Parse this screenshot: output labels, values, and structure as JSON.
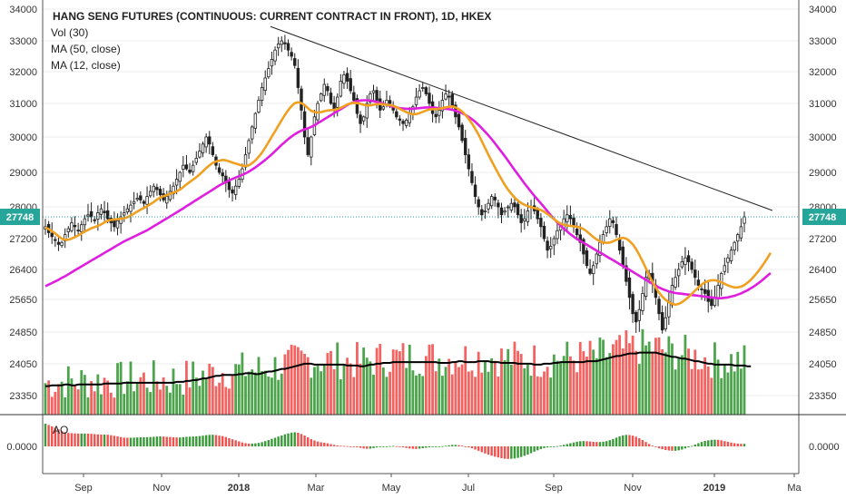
{
  "header": {
    "title": "HANG SENG FUTURES (CONTINUOUS: CURRENT CONTRACT IN FRONT), 1D, HKEX",
    "indicators": [
      "Vol (30)",
      "MA (50, close)",
      "MA (12, close)"
    ]
  },
  "colors": {
    "bull": "#3a9a3a",
    "bear": "#ef5350",
    "ma50": "#e01ee0",
    "ma12": "#f0a020",
    "vol_ma": "#000000",
    "trendline": "#222222",
    "last_price": "#26a69a",
    "grid": "#ececec",
    "axis": "#555555"
  },
  "chart_data": [
    {
      "type": "candlestick",
      "title": "HANG SENG FUTURES (CONTINUOUS: CURRENT CONTRACT IN FRONT), 1D, HKEX",
      "x_labels": [
        "Sep",
        "Nov",
        "2018",
        "Mar",
        "May",
        "Jul",
        "Sep",
        "Nov",
        "2019",
        "Ma"
      ],
      "y_ticks": [
        23350,
        24050,
        24850,
        25650,
        26400,
        27200,
        28000,
        29000,
        30000,
        31000,
        32000,
        33000,
        34000
      ],
      "y_range": [
        23200,
        34000
      ],
      "last_price": 27748,
      "last_price_label": "27748",
      "series": [
        {
          "name": "Close",
          "values": [
            27500,
            27350,
            27250,
            27150,
            27050,
            27100,
            27300,
            27450,
            27600,
            27500,
            27400,
            27550,
            27700,
            27800,
            27750,
            27650,
            27850,
            27950,
            27850,
            27700,
            27600,
            27500,
            27650,
            27750,
            27850,
            27950,
            28050,
            28150,
            28250,
            28200,
            28100,
            28300,
            28450,
            28600,
            28500,
            28350,
            28200,
            28300,
            28450,
            28600,
            28800,
            29000,
            29200,
            29100,
            29000,
            29200,
            29400,
            29600,
            29800,
            30000,
            29800,
            29500,
            29200,
            29000,
            28900,
            28700,
            28500,
            28400,
            28600,
            28800,
            29100,
            29500,
            29900,
            30300,
            30700,
            31100,
            31500,
            31800,
            32100,
            32400,
            32700,
            32900,
            33000,
            32900,
            32700,
            32500,
            32200,
            31500,
            30800,
            30000,
            29500,
            30000,
            30600,
            31000,
            31300,
            31600,
            31400,
            31000,
            30800,
            31200,
            31700,
            31900,
            31700,
            31400,
            31100,
            30700,
            30400,
            30600,
            31000,
            31300,
            31400,
            31100,
            30800,
            30900,
            31100,
            31000,
            30800,
            30600,
            30500,
            30400,
            30500,
            30700,
            30900,
            31200,
            31400,
            31500,
            31300,
            31000,
            30700,
            30600,
            30800,
            31100,
            31300,
            31200,
            30900,
            30600,
            30300,
            29900,
            29500,
            29100,
            28700,
            28300,
            28000,
            27800,
            27900,
            28100,
            28300,
            28200,
            28000,
            27800,
            27900,
            28000,
            28100,
            28000,
            27800,
            27600,
            27700,
            27900,
            28000,
            27900,
            27700,
            27500,
            27200,
            26900,
            27000,
            27200,
            27400,
            27500,
            27700,
            27800,
            27700,
            27500,
            27300,
            27100,
            26800,
            26500,
            26300,
            26500,
            26800,
            27100,
            27300,
            27500,
            27700,
            27600,
            27300,
            26900,
            26500,
            26100,
            25700,
            25300,
            25100,
            25400,
            25800,
            26200,
            26300,
            26100,
            25700,
            25300,
            24900,
            25200,
            25600,
            26000,
            26200,
            26400,
            26600,
            26700,
            26600,
            26400,
            26200,
            26000,
            25900,
            25800,
            25600,
            25500,
            25700,
            26000,
            26300,
            26500,
            26700,
            26900,
            27100,
            27300,
            27500,
            27748
          ]
        },
        {
          "name": "MA (12, close)",
          "values": [
            27480,
            27440,
            27390,
            27330,
            27260,
            27200,
            27170,
            27170,
            27200,
            27240,
            27280,
            27330,
            27380,
            27420,
            27460,
            27490,
            27520,
            27560,
            27610,
            27650,
            27670,
            27680,
            27690,
            27700,
            27710,
            27740,
            27780,
            27830,
            27880,
            27930,
            27970,
            28020,
            28080,
            28140,
            28210,
            28270,
            28310,
            28340,
            28380,
            28410,
            28450,
            28500,
            28570,
            28650,
            28720,
            28790,
            28860,
            28940,
            29030,
            29120,
            29200,
            29270,
            29310,
            29330,
            29350,
            29340,
            29310,
            29280,
            29250,
            29220,
            29190,
            29180,
            29200,
            29260,
            29340,
            29440,
            29560,
            29700,
            29850,
            30010,
            30170,
            30340,
            30500,
            30660,
            30800,
            30920,
            31010,
            31040,
            31010,
            30950,
            30860,
            30780,
            30740,
            30730,
            30740,
            30770,
            30790,
            30800,
            30810,
            30830,
            30870,
            30920,
            30970,
            31000,
            31020,
            31010,
            30990,
            30960,
            30940,
            30940,
            30960,
            30980,
            30980,
            30970,
            30960,
            30950,
            30930,
            30890,
            30840,
            30790,
            30740,
            30700,
            30680,
            30680,
            30710,
            30750,
            30790,
            30820,
            30830,
            30830,
            30840,
            30860,
            30880,
            30900,
            30910,
            30880,
            30830,
            30760,
            30660,
            30540,
            30400,
            30240,
            30070,
            29880,
            29690,
            29500,
            29320,
            29140,
            28970,
            28800,
            28640,
            28500,
            28380,
            28270,
            28180,
            28110,
            28060,
            28020,
            27990,
            27970,
            27950,
            27920,
            27880,
            27820,
            27760,
            27690,
            27630,
            27580,
            27550,
            27530,
            27520,
            27510,
            27500,
            27480,
            27440,
            27380,
            27310,
            27240,
            27180,
            27130,
            27100,
            27090,
            27100,
            27130,
            27170,
            27200,
            27220,
            27200,
            27140,
            27050,
            26930,
            26780,
            26610,
            26430,
            26250,
            26090,
            25950,
            25820,
            25720,
            25640,
            25580,
            25540,
            25520,
            25540,
            25580,
            25640,
            25710,
            25790,
            25870,
            25950,
            26020,
            26080,
            26110,
            26130,
            26130,
            26110,
            26080,
            26040,
            26000,
            25970,
            25950,
            25950,
            25970,
            26010,
            26070,
            26140,
            26230,
            26330,
            26440,
            26560,
            26690,
            26830
          ]
        },
        {
          "name": "MA (50, close)",
          "values": [
            25980,
            26020,
            26060,
            26100,
            26140,
            26190,
            26230,
            26280,
            26330,
            26380,
            26430,
            26480,
            26530,
            26580,
            26630,
            26680,
            26730,
            26780,
            26830,
            26880,
            26930,
            26980,
            27030,
            27080,
            27130,
            27170,
            27210,
            27250,
            27290,
            27330,
            27370,
            27410,
            27460,
            27510,
            27560,
            27610,
            27660,
            27710,
            27760,
            27810,
            27860,
            27910,
            27960,
            28020,
            28080,
            28140,
            28200,
            28260,
            28320,
            28380,
            28440,
            28500,
            28560,
            28620,
            28670,
            28720,
            28770,
            28810,
            28850,
            28890,
            28930,
            28970,
            29020,
            29080,
            29140,
            29210,
            29280,
            29350,
            29430,
            29510,
            29600,
            29690,
            29780,
            29860,
            29940,
            30010,
            30080,
            30140,
            30190,
            30230,
            30260,
            30300,
            30350,
            30410,
            30470,
            30530,
            30590,
            30650,
            30710,
            30770,
            30830,
            30890,
            30950,
            31000,
            31040,
            31070,
            31090,
            31100,
            31100,
            31090,
            31070,
            31050,
            31020,
            30990,
            30960,
            30930,
            30900,
            30880,
            30860,
            30850,
            30840,
            30840,
            30840,
            30850,
            30860,
            30870,
            30880,
            30880,
            30880,
            30870,
            30860,
            30850,
            30840,
            30830,
            30810,
            30780,
            30750,
            30710,
            30660,
            30600,
            30530,
            30450,
            30360,
            30260,
            30160,
            30050,
            29940,
            29820,
            29700,
            29580,
            29460,
            29330,
            29200,
            29070,
            28940,
            28810,
            28680,
            28560,
            28440,
            28320,
            28210,
            28100,
            27990,
            27890,
            27790,
            27700,
            27610,
            27530,
            27450,
            27380,
            27310,
            27250,
            27190,
            27140,
            27090,
            27040,
            26990,
            26940,
            26890,
            26840,
            26790,
            26740,
            26690,
            26640,
            26590,
            26540,
            26490,
            26440,
            26390,
            26340,
            26290,
            26240,
            26190,
            26140,
            26090,
            26040,
            25990,
            25950,
            25910,
            25880,
            25850,
            25830,
            25810,
            25800,
            25790,
            25780,
            25770,
            25760,
            25750,
            25740,
            25730,
            25720,
            25710,
            25700,
            25690,
            25680,
            25680,
            25690,
            25700,
            25720,
            25740,
            25770,
            25800,
            25840,
            25880,
            25930,
            25980,
            26040,
            26100,
            26170,
            26240,
            26310
          ]
        }
      ]
    },
    {
      "type": "bar",
      "title": "Vol (30)",
      "y_ticks": [
        23350,
        24050,
        24850
      ],
      "series": [
        {
          "name": "Vol (30)",
          "values": [
            0.33,
            0.33,
            0.34,
            0.34,
            0.34,
            0.34,
            0.35,
            0.35,
            0.34,
            0.34,
            0.35,
            0.35,
            0.35,
            0.35,
            0.35,
            0.35,
            0.35,
            0.35,
            0.36,
            0.36,
            0.36,
            0.36,
            0.36,
            0.36,
            0.37,
            0.37,
            0.37,
            0.37,
            0.37,
            0.37,
            0.37,
            0.37,
            0.37,
            0.37,
            0.37,
            0.37,
            0.37,
            0.37,
            0.37,
            0.37,
            0.38,
            0.38,
            0.38,
            0.39,
            0.39,
            0.4,
            0.4,
            0.41,
            0.42,
            0.42,
            0.43,
            0.44,
            0.45,
            0.45,
            0.46,
            0.46,
            0.46,
            0.46,
            0.46,
            0.47,
            0.47,
            0.48,
            0.48,
            0.48,
            0.47,
            0.47,
            0.48,
            0.49,
            0.5,
            0.5,
            0.51,
            0.52,
            0.53,
            0.53,
            0.54,
            0.55,
            0.56,
            0.57,
            0.58,
            0.59,
            0.59,
            0.59,
            0.58,
            0.58,
            0.58,
            0.58,
            0.58,
            0.58,
            0.58,
            0.58,
            0.58,
            0.58,
            0.57,
            0.57,
            0.57,
            0.57,
            0.56,
            0.56,
            0.57,
            0.58,
            0.58,
            0.59,
            0.59,
            0.6,
            0.6,
            0.6,
            0.61,
            0.61,
            0.61,
            0.61,
            0.61,
            0.61,
            0.61,
            0.61,
            0.61,
            0.61,
            0.61,
            0.61,
            0.61,
            0.61,
            0.6,
            0.6,
            0.6,
            0.6,
            0.61,
            0.61,
            0.62,
            0.62,
            0.61,
            0.61,
            0.61,
            0.61,
            0.62,
            0.62,
            0.62,
            0.62,
            0.61,
            0.61,
            0.61,
            0.6,
            0.6,
            0.6,
            0.6,
            0.6,
            0.59,
            0.59,
            0.59,
            0.59,
            0.59,
            0.58,
            0.58,
            0.58,
            0.59,
            0.59,
            0.59,
            0.6,
            0.6,
            0.61,
            0.61,
            0.61,
            0.61,
            0.61,
            0.61,
            0.61,
            0.61,
            0.62,
            0.62,
            0.62,
            0.62,
            0.63,
            0.64,
            0.65,
            0.66,
            0.67,
            0.68,
            0.68,
            0.69,
            0.7,
            0.71,
            0.71,
            0.71,
            0.72,
            0.72,
            0.72,
            0.72,
            0.72,
            0.72,
            0.71,
            0.7,
            0.69,
            0.68,
            0.67,
            0.67,
            0.66,
            0.65,
            0.65,
            0.64,
            0.63,
            0.62,
            0.62,
            0.61,
            0.6,
            0.59,
            0.59,
            0.58,
            0.58,
            0.58,
            0.58,
            0.58,
            0.58,
            0.57,
            0.57,
            0.57,
            0.57,
            0.56,
            0.56
          ]
        }
      ]
    },
    {
      "type": "bar",
      "title": "AO",
      "y_ticks": [
        0
      ],
      "y_tick_labels": [
        "0.0000"
      ]
    }
  ]
}
